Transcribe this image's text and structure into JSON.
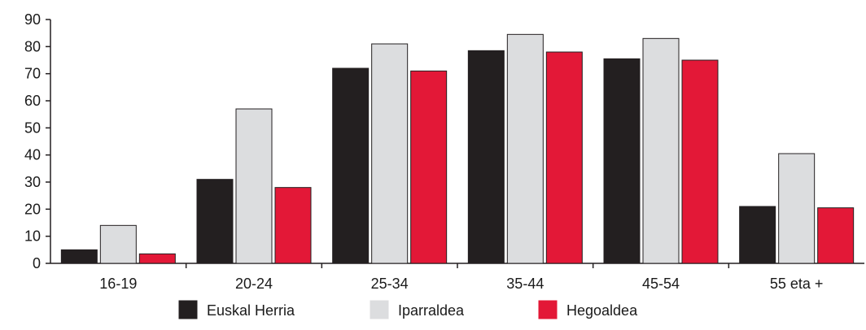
{
  "chart_data": {
    "type": "bar",
    "categories": [
      "16-19",
      "20-24",
      "25-34",
      "35-44",
      "45-54",
      "55 eta +"
    ],
    "series": [
      {
        "name": "Euskal Herria",
        "color": "#231f20",
        "values": [
          5,
          31,
          72,
          78.5,
          75.5,
          21
        ]
      },
      {
        "name": "Iparraldea",
        "color": "#dcdddf",
        "values": [
          14,
          57,
          81,
          84.5,
          83,
          40.5
        ]
      },
      {
        "name": "Hegoaldea",
        "color": "#e31837",
        "values": [
          3.5,
          28,
          71,
          78,
          75,
          20.5
        ]
      }
    ],
    "y_ticks": [
      "0",
      "10",
      "20",
      "30",
      "40",
      "50",
      "60",
      "70",
      "80",
      "90"
    ],
    "ylim": [
      0,
      90
    ],
    "grid": false,
    "legend": "bottom-center",
    "title": "",
    "xlabel": "",
    "ylabel": ""
  }
}
